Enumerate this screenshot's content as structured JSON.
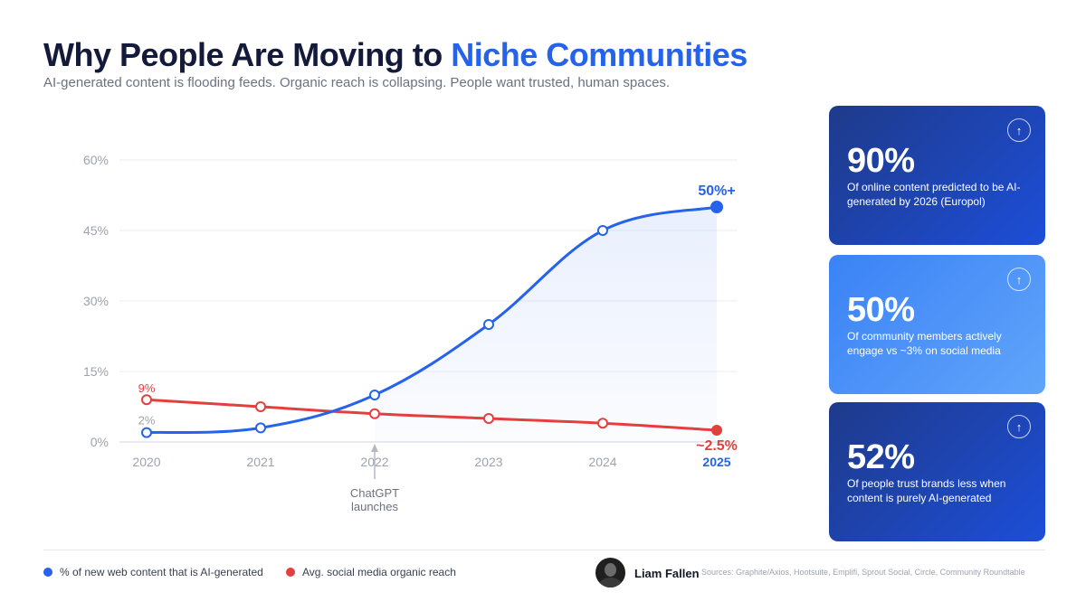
{
  "header": {
    "title_part1": "Why People Are Moving to ",
    "title_part2": "Niche Communities",
    "subtitle": "AI-generated content is flooding feeds. Organic reach is collapsing. People want trusted, human spaces."
  },
  "colors": {
    "blue": "#2563eb",
    "red": "#e53e3e",
    "title_dark": "#141a3a",
    "card_dark": "#1e40af",
    "card_light": "#4f93f7"
  },
  "chart_data": {
    "type": "line",
    "categories": [
      "2020",
      "2021",
      "2022",
      "2023",
      "2024",
      "2025"
    ],
    "y_ticks": [
      "60%",
      "45%",
      "30%",
      "15%",
      "0%"
    ],
    "ylim": [
      0,
      60
    ],
    "grid": true,
    "series": [
      {
        "name": "% of new web content that is AI-generated",
        "color": "#2563eb",
        "values": [
          2,
          3,
          10,
          25,
          45,
          50
        ]
      },
      {
        "name": "Avg. social media organic reach",
        "color": "#e53e3e",
        "values": [
          9,
          7.5,
          6,
          5,
          4,
          2.5
        ]
      }
    ],
    "annotations": {
      "blue_start": "2%",
      "red_start": "9%",
      "blue_end": "50%+",
      "red_end": "~2.5%",
      "event_label_line1": "ChatGPT",
      "event_label_line2": "launches",
      "event_year": "2022",
      "highlight_year": "2025"
    }
  },
  "stats": [
    {
      "value": "90%",
      "text": "Of online content predicted to be AI-generated by 2026 (Europol)",
      "icon": "arrow-up-icon"
    },
    {
      "value": "50%",
      "text": "Of community members actively engage vs ~3% on social media",
      "icon": "arrow-up-icon"
    },
    {
      "value": "52%",
      "text": "Of people trust brands less when content is purely AI-generated",
      "icon": "arrow-up-icon"
    }
  ],
  "footer": {
    "legend_blue": "% of new web content that is AI-generated",
    "legend_red": "Avg. social media organic reach",
    "author": "Liam Fallen",
    "sources": "Sources: Graphite/Axios, Hootsuite, Emplifi, Sprout Social, Circle, Community Roundtable"
  }
}
